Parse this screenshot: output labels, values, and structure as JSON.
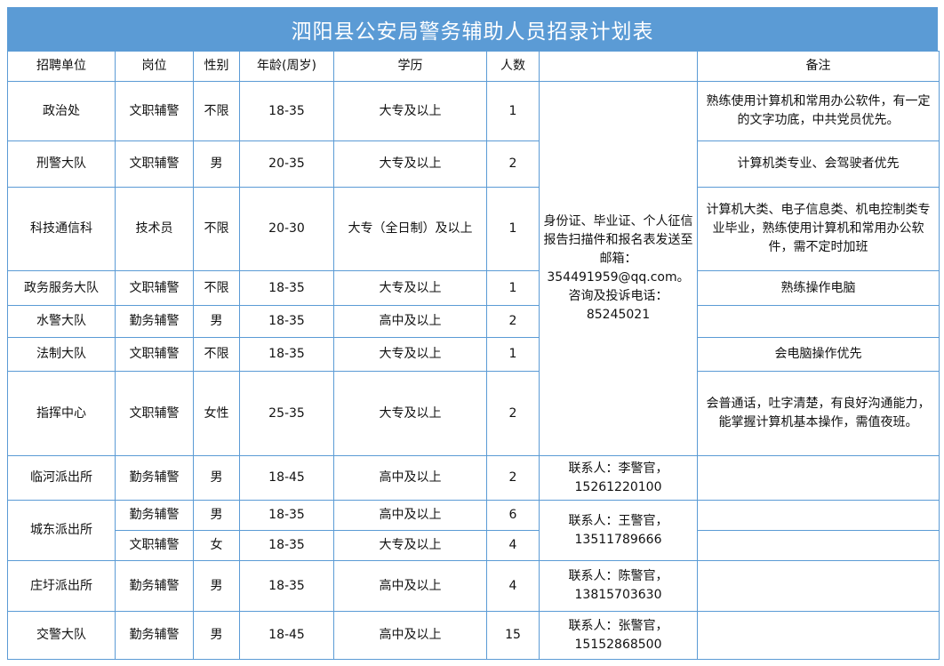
{
  "title": "泗阳县公安局警务辅助人员招录计划表",
  "headers": [
    "招聘单位",
    "岗位",
    "性别",
    "年龄(周岁)",
    "学历",
    "人数",
    "",
    "备注"
  ],
  "rows": [
    {
      "unit": "政治处",
      "post": "文职辅警",
      "gender": "不限",
      "age": "18-35",
      "edu": "大专及以上",
      "count": "1",
      "contact": "身份证、毕业证、个人征信报告扫描件和报名表发送至邮箱：354491959@qq.com。咨询及投诉电话：85245021",
      "remark": "熟练使用计算机和常用办公软件，有一定的文字功底，中共党员优先。"
    },
    {
      "unit": "刑警大队",
      "post": "文职辅警",
      "gender": "男",
      "age": "20-35",
      "edu": "大专及以上",
      "count": "2",
      "remark": "计算机类专业、会驾驶者优先"
    },
    {
      "unit": "科技通信科",
      "post": "技术员",
      "gender": "不限",
      "age": "20-30",
      "edu": "大专（全日制）及以上",
      "count": "1",
      "remark": "计算机大类、电子信息类、机电控制类专业毕业，熟练使用计算机和常用办公软件，需不定时加班"
    },
    {
      "unit": "政务服务大队",
      "post": "文职辅警",
      "gender": "不限",
      "age": "18-35",
      "edu": "大专及以上",
      "count": "1",
      "remark": "熟练操作电脑"
    },
    {
      "unit": "水警大队",
      "post": "勤务辅警",
      "gender": "男",
      "age": "18-35",
      "edu": "高中及以上",
      "count": "2",
      "remark": ""
    },
    {
      "unit": "法制大队",
      "post": "文职辅警",
      "gender": "不限",
      "age": "18-35",
      "edu": "大专及以上",
      "count": "1",
      "remark": "会电脑操作优先"
    },
    {
      "unit": "指挥中心",
      "post": "文职辅警",
      "gender": "女性",
      "age": "25-35",
      "edu": "大专及以上",
      "count": "2",
      "remark": "会普通话，吐字清楚，有良好沟通能力，能掌握计算机基本操作，需值夜班。"
    },
    {
      "unit": "临河派出所",
      "post": "勤务辅警",
      "gender": "男",
      "age": "18-45",
      "edu": "高中及以上",
      "count": "2",
      "contact": "联系人：李警官，15261220100",
      "remark": ""
    },
    {
      "unit": "城东派出所",
      "post": "勤务辅警",
      "gender": "男",
      "age": "18-35",
      "edu": "高中及以上",
      "count": "6",
      "contact": "联系人：王警官，13511789666",
      "remark": ""
    },
    {
      "post": "文职辅警",
      "gender": "女",
      "age": "18-35",
      "edu": "大专及以上",
      "count": "4",
      "remark": ""
    },
    {
      "unit": "庄圩派出所",
      "post": "勤务辅警",
      "gender": "男",
      "age": "18-35",
      "edu": "高中及以上",
      "count": "4",
      "contact": "联系人：陈警官，13815703630",
      "remark": ""
    },
    {
      "unit": "交警大队",
      "post": "勤务辅警",
      "gender": "男",
      "age": "18-45",
      "edu": "高中及以上",
      "count": "15",
      "contact": "联系人：张警官，15152868500",
      "remark": ""
    }
  ],
  "colors": {
    "title_bg": "#5b9bd5",
    "border": "#5b9bd5"
  }
}
